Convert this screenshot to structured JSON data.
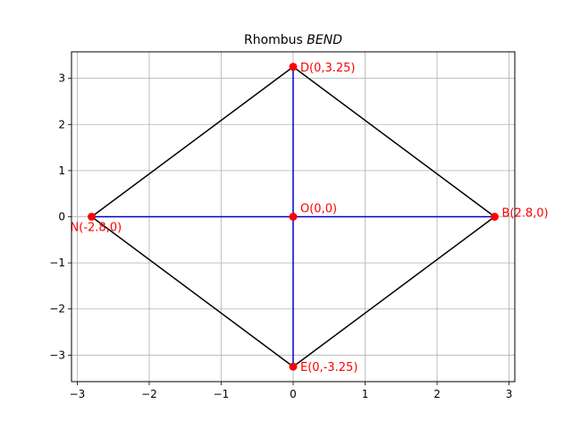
{
  "chart_data": {
    "type": "scatter",
    "title": "Rhombus BEND",
    "title_main": "Rhombus ",
    "title_italic": "BEND",
    "xlabel": "",
    "ylabel": "",
    "xlim": [
      -3.08,
      3.08
    ],
    "ylim": [
      -3.575,
      3.575
    ],
    "xticks": [
      -3,
      -2,
      -1,
      0,
      1,
      2,
      3
    ],
    "yticks": [
      -3,
      -2,
      -1,
      0,
      1,
      2,
      3
    ],
    "xtick_labels": [
      "−3",
      "−2",
      "−1",
      "0",
      "1",
      "2",
      "3"
    ],
    "ytick_labels": [
      "−3",
      "−2",
      "−1",
      "0",
      "1",
      "2",
      "3"
    ],
    "grid": true,
    "points": [
      {
        "id": "B",
        "label": "B(2.8,0)",
        "x": 2.8,
        "y": 0
      },
      {
        "id": "E",
        "label": "E(0,-3.25)",
        "x": 0,
        "y": -3.25
      },
      {
        "id": "N",
        "label": "N(-2.8,0)",
        "x": -2.8,
        "y": 0
      },
      {
        "id": "D",
        "label": "D(0,3.25)",
        "x": 0,
        "y": 3.25
      },
      {
        "id": "O",
        "label": "O(0,0)",
        "x": 0,
        "y": 0
      }
    ],
    "polygon": [
      "B",
      "E",
      "N",
      "D"
    ],
    "diagonals": [
      [
        "N",
        "B"
      ],
      [
        "D",
        "E"
      ]
    ],
    "colors": {
      "polygon": "#000000",
      "diagonal": "#0000cc",
      "point": "#ff0000",
      "label": "#ff0000",
      "grid": "#b0b0b0"
    }
  }
}
